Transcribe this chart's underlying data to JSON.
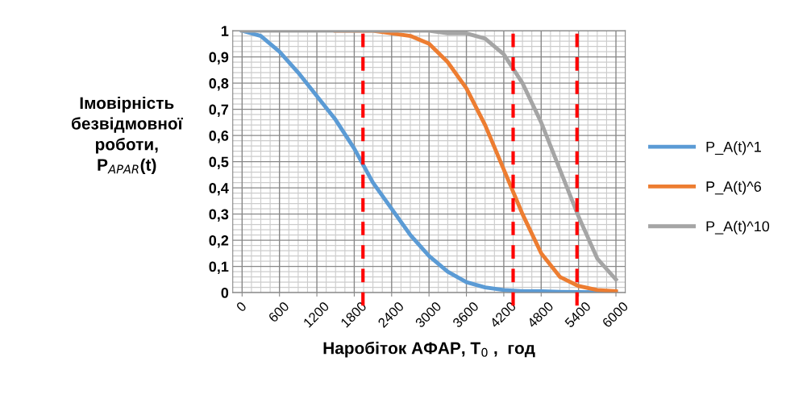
{
  "chart_data": {
    "type": "line",
    "xlabel": "Наробіток АФАР, T$_{0}$ ,  год",
    "ylabel": "Імовірність\nбезвідмовної\nроботи,\nP$_{APAR}$(t)",
    "x": [
      0,
      300,
      600,
      900,
      1200,
      1500,
      1800,
      2100,
      2400,
      2700,
      3000,
      3300,
      3600,
      3900,
      4200,
      4500,
      4800,
      5100,
      5400,
      5700,
      6000
    ],
    "series": [
      {
        "name": "P_A(t)^1",
        "color": "#5b9bd5",
        "values": [
          1.0,
          0.98,
          0.92,
          0.84,
          0.75,
          0.66,
          0.55,
          0.42,
          0.32,
          0.22,
          0.14,
          0.08,
          0.04,
          0.02,
          0.01,
          0.005,
          0.005,
          0.003,
          0.002,
          0.001,
          0.001
        ]
      },
      {
        "name": "P_A(t)^6",
        "color": "#ed7d31",
        "values": [
          null,
          null,
          null,
          null,
          null,
          1,
          1,
          1,
          0.99,
          0.98,
          0.95,
          0.88,
          0.78,
          0.64,
          0.47,
          0.3,
          0.15,
          0.06,
          0.025,
          0.01,
          0.005
        ]
      },
      {
        "name": "P_A(t)^10",
        "color": "#a5a5a5",
        "values": [
          1,
          1,
          1,
          1,
          1,
          1,
          1,
          1,
          1,
          1,
          1,
          0.99,
          0.99,
          0.97,
          0.91,
          0.8,
          0.65,
          0.47,
          0.29,
          0.13,
          0.05
        ]
      }
    ],
    "xlim": [
      -150,
      6150
    ],
    "xticks": [
      0,
      600,
      1200,
      1800,
      2400,
      3000,
      3600,
      4200,
      4800,
      5400,
      6000
    ],
    "ylim": [
      0,
      1
    ],
    "yticks": [
      0,
      {
        "value": 0.1,
        "label": "0,1"
      },
      {
        "value": 0.2,
        "label": "0,2"
      },
      {
        "value": 0.3,
        "label": "0,3"
      },
      {
        "value": 0.4,
        "label": "0,4"
      },
      {
        "value": 0.5,
        "label": "0,5"
      },
      {
        "value": 0.6,
        "label": "0,6"
      },
      {
        "value": 0.7,
        "label": "0,7"
      },
      {
        "value": 0.8,
        "label": "0,8"
      },
      {
        "value": 0.9,
        "label": "0,9"
      },
      1
    ],
    "ref_lines": [
      {
        "axis": "x",
        "value": 1940,
        "color": "#ff0000",
        "line_style": "dashed"
      },
      {
        "axis": "x",
        "value": 4350,
        "color": "#ff0000",
        "line_style": "dashed"
      },
      {
        "axis": "x",
        "value": 5375,
        "color": "#ff0000",
        "line_style": "dashed"
      }
    ],
    "grid": true,
    "legend": "right",
    "line_style": "solid",
    "marker": "none"
  }
}
